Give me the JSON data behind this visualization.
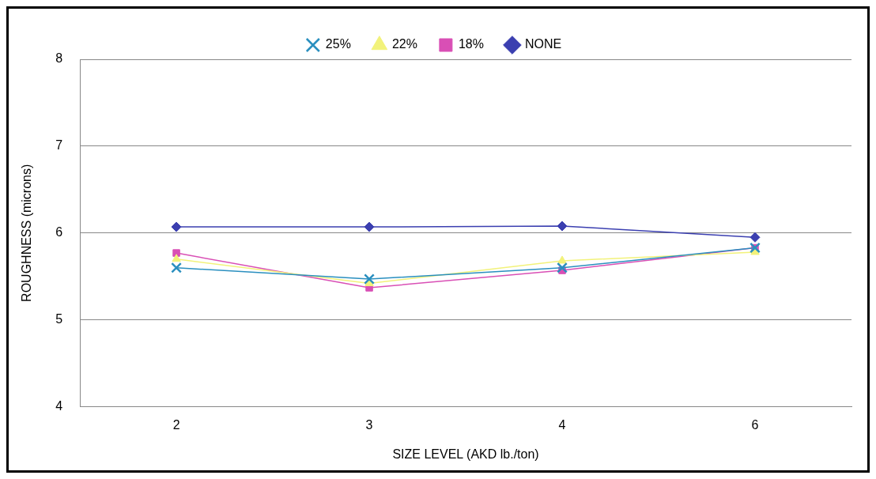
{
  "chart_data": {
    "type": "line",
    "xlabel": "SIZE LEVEL (AKD lb./ton)",
    "ylabel": "ROUGHNESS (microns)",
    "categories": [
      "2",
      "3",
      "4",
      "6"
    ],
    "series": [
      {
        "name": "NONE",
        "color": "#3b3fb0",
        "marker": "diamond",
        "values": [
          6.07,
          6.07,
          6.08,
          5.95
        ]
      },
      {
        "name": "18%",
        "color": "#d94fb5",
        "marker": "square",
        "values": [
          5.77,
          5.37,
          5.57,
          5.83
        ]
      },
      {
        "name": "22%",
        "color": "#f2f27a",
        "marker": "triangle",
        "values": [
          5.7,
          5.42,
          5.68,
          5.78
        ]
      },
      {
        "name": "25%",
        "color": "#2a8fbf",
        "marker": "cross",
        "values": [
          5.6,
          5.47,
          5.6,
          5.83
        ]
      }
    ],
    "ylim": [
      4,
      8
    ],
    "yticks": [
      4,
      5,
      6,
      7,
      8
    ],
    "grid": "y",
    "legend": "top"
  }
}
